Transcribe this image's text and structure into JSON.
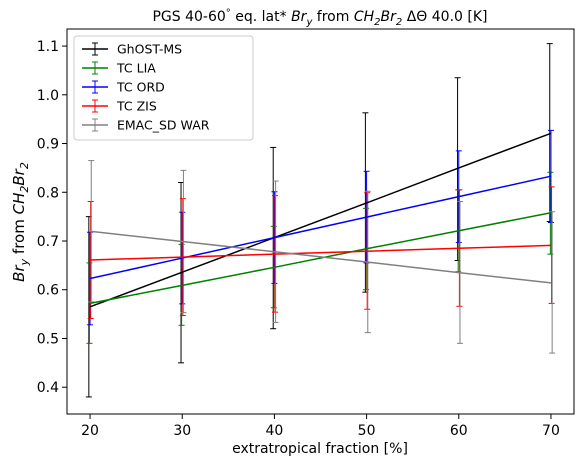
{
  "chart_data": {
    "type": "line",
    "title": "PGS 40-60°eq. lat* Br_y from CH₂Br₂ ΔΘ 40.0 [K]",
    "title_parts": {
      "prefix": "PGS 40-60",
      "degree": "°",
      "mid": " eq. lat* ",
      "br": "Br",
      "y": "y",
      "from": " from ",
      "ch": "CH",
      "two_a": "2",
      "brr": "Br",
      "two_b": "2",
      "suffix": " ΔΘ 40.0 [K]"
    },
    "xlabel": "extratropical fraction [%]",
    "ylabel_parts": {
      "br": "Br",
      "y": "y",
      "from": " from ",
      "ch": "CH",
      "two_a": "2",
      "brr": "Br",
      "two_b": "2"
    },
    "xlim": [
      17.5,
      72.5
    ],
    "ylim": [
      0.345,
      1.135
    ],
    "x_ticks": [
      20,
      30,
      40,
      50,
      60,
      70
    ],
    "y_ticks": [
      0.4,
      0.5,
      0.6,
      0.7,
      0.8,
      0.9,
      1.0,
      1.1
    ],
    "grid": false,
    "legend_position": "top-left",
    "x": [
      20,
      30,
      40,
      50,
      60,
      70
    ],
    "series": [
      {
        "name": "GhOST-MS",
        "color": "#000000",
        "values": [
          0.565,
          0.636,
          0.707,
          0.778,
          0.85,
          0.921
        ],
        "err_low": [
          0.38,
          0.45,
          0.52,
          0.595,
          0.66,
          0.74
        ],
        "err_high": [
          0.75,
          0.82,
          0.892,
          0.963,
          1.035,
          1.105
        ]
      },
      {
        "name": "TC LIA",
        "color": "#008000",
        "values": [
          0.572,
          0.609,
          0.646,
          0.684,
          0.721,
          0.758
        ],
        "err_low": [
          0.49,
          0.527,
          0.563,
          0.6,
          0.637,
          0.673
        ],
        "err_high": [
          0.655,
          0.693,
          0.73,
          0.767,
          0.805,
          0.841
        ]
      },
      {
        "name": "TC ORD",
        "color": "#0000ff",
        "values": [
          0.623,
          0.665,
          0.707,
          0.749,
          0.791,
          0.833
        ],
        "err_low": [
          0.528,
          0.571,
          0.613,
          0.655,
          0.697,
          0.738
        ],
        "err_high": [
          0.718,
          0.759,
          0.801,
          0.843,
          0.885,
          0.927
        ]
      },
      {
        "name": "TC ZIS",
        "color": "#ff0000",
        "values": [
          0.661,
          0.667,
          0.673,
          0.679,
          0.685,
          0.691
        ],
        "err_low": [
          0.541,
          0.547,
          0.554,
          0.56,
          0.566,
          0.572
        ],
        "err_high": [
          0.781,
          0.787,
          0.793,
          0.799,
          0.805,
          0.811
        ]
      },
      {
        "name": "EMAC_SD WAR",
        "color": "#808080",
        "values": [
          0.72,
          0.699,
          0.678,
          0.657,
          0.635,
          0.614
        ],
        "err_low": [
          0.575,
          0.553,
          0.533,
          0.512,
          0.49,
          0.47
        ],
        "err_high": [
          0.865,
          0.845,
          0.823,
          0.802,
          0.781,
          0.76
        ]
      }
    ]
  }
}
